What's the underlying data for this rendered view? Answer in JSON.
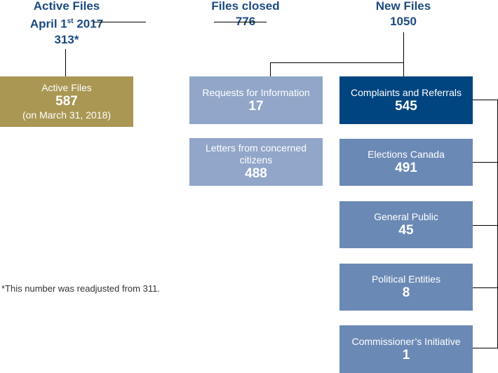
{
  "headers": {
    "active_start": {
      "line1": "Active Files",
      "line2_pre": "April 1",
      "line2_sup": "st",
      "line2_post": " 2017",
      "value": "313*"
    },
    "closed": {
      "label": "Files closed",
      "value": "776"
    },
    "new": {
      "label": "New Files",
      "value": "1050"
    }
  },
  "boxes": {
    "active_end": {
      "label": "Active Files",
      "value": "587",
      "note": "(on March 31, 2018)",
      "color": "#A99753"
    },
    "requests": {
      "label": "Requests for Information",
      "value": "17",
      "color": "#91A6C8"
    },
    "letters": {
      "label": "Letters from concerned citizens",
      "value": "488",
      "color": "#91A6C8"
    },
    "complaints": {
      "label": "Complaints and Referrals",
      "value": "545",
      "color": "#00457F"
    },
    "elections": {
      "label": "Elections Canada",
      "value": "491",
      "color": "#6B89B5"
    },
    "public": {
      "label": "General Public",
      "value": "45",
      "color": "#6B89B5"
    },
    "political": {
      "label": "Political Entities",
      "value": "8",
      "color": "#6B89B5"
    },
    "commissioner": {
      "label": "Commissioner’s Initiative",
      "value": "1",
      "color": "#6B89B5"
    }
  },
  "footnote": "*This number was readjusted from 311."
}
